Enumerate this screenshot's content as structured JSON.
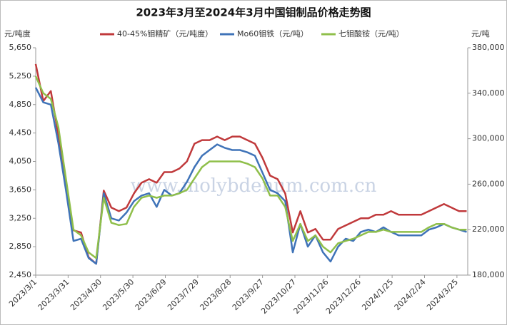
{
  "chart_data": {
    "type": "line",
    "title": "2023年3月至2024年3月中国钼制品价格走势图",
    "ylabel": "元/吨度",
    "y2label": "元/吨",
    "watermark": "www.molybdenum.com.cn",
    "x": [
      "2023/3/1",
      "2023/3/8",
      "2023/3/15",
      "2023/3/22",
      "2023/3/29",
      "2023/4/5",
      "2023/4/12",
      "2023/4/19",
      "2023/4/26",
      "2023/5/3",
      "2023/5/10",
      "2023/5/17",
      "2023/5/24",
      "2023/5/31",
      "2023/6/7",
      "2023/6/14",
      "2023/6/21",
      "2023/6/28",
      "2023/7/5",
      "2023/7/12",
      "2023/7/19",
      "2023/7/26",
      "2023/8/2",
      "2023/8/9",
      "2023/8/16",
      "2023/8/23",
      "2023/8/30",
      "2023/9/6",
      "2023/9/13",
      "2023/9/20",
      "2023/9/27",
      "2023/10/4",
      "2023/10/11",
      "2023/10/18",
      "2023/10/25",
      "2023/11/1",
      "2023/11/8",
      "2023/11/15",
      "2023/11/22",
      "2023/11/29",
      "2023/12/6",
      "2023/12/13",
      "2023/12/20",
      "2023/12/27",
      "2024/1/3",
      "2024/1/10",
      "2024/1/17",
      "2024/1/24",
      "2024/1/31",
      "2024/2/7",
      "2024/2/14",
      "2024/2/21",
      "2024/2/28",
      "2024/3/6",
      "2024/3/13",
      "2024/3/20",
      "2024/3/27",
      "2024/4/3"
    ],
    "xlim": [
      "2023/3/1",
      "2024/4/4"
    ],
    "xticks": [
      "2023/3/1",
      "2023/3/31",
      "2023/4/30",
      "2023/5/30",
      "2023/6/29",
      "2023/7/29",
      "2023/8/28",
      "2023/9/27",
      "2023/10/27",
      "2023/11/26",
      "2023/12/26",
      "2024/1/25",
      "2024/2/24",
      "2024/3/25"
    ],
    "ylim": [
      2450,
      5650
    ],
    "yticks": [
      {
        "value": 2450,
        "label": "2,450"
      },
      {
        "value": 2850,
        "label": "2,850"
      },
      {
        "value": 3250,
        "label": "3,250"
      },
      {
        "value": 3650,
        "label": "3,650"
      },
      {
        "value": 4050,
        "label": "4,050"
      },
      {
        "value": 4450,
        "label": "4,450"
      },
      {
        "value": 4850,
        "label": "4,850"
      },
      {
        "value": 5250,
        "label": "5,250"
      },
      {
        "value": 5650,
        "label": "5,650"
      }
    ],
    "y2lim": [
      180000,
      380000
    ],
    "y2ticks": [
      {
        "value": 180000,
        "label": "180,000"
      },
      {
        "value": 220000,
        "label": "220,000"
      },
      {
        "value": 260000,
        "label": "260,000"
      },
      {
        "value": 300000,
        "label": "300,000"
      },
      {
        "value": 340000,
        "label": "340,000"
      },
      {
        "value": 380000,
        "label": "380,000"
      }
    ],
    "grid": false,
    "series": [
      {
        "name": "40-45%钼精矿（元/吨度）",
        "color": "#c0393b",
        "axis": "y",
        "values": [
          5420,
          4900,
          5040,
          4420,
          3720,
          3080,
          3050,
          2700,
          2610,
          3640,
          3400,
          3350,
          3400,
          3600,
          3750,
          3800,
          3750,
          3900,
          3900,
          3950,
          4050,
          4300,
          4350,
          4350,
          4400,
          4350,
          4400,
          4400,
          4350,
          4300,
          4100,
          3850,
          3800,
          3600,
          3050,
          3350,
          3050,
          3100,
          2950,
          2950,
          3100,
          3150,
          3200,
          3250,
          3250,
          3300,
          3300,
          3350,
          3300,
          3300,
          3300,
          3300,
          3350,
          3400,
          3450,
          3400,
          3350,
          3350
        ]
      },
      {
        "name": "Mo60钼铁（元/吨）",
        "color": "#3f73b8",
        "axis": "y2",
        "values": [
          345000,
          332000,
          330000,
          296000,
          255000,
          210000,
          212000,
          195000,
          190000,
          252000,
          230000,
          228000,
          235000,
          245000,
          250000,
          252000,
          240000,
          255000,
          250000,
          252000,
          262000,
          275000,
          285000,
          290000,
          295000,
          292000,
          290000,
          290000,
          288000,
          285000,
          270000,
          255000,
          252000,
          245000,
          200000,
          225000,
          205000,
          215000,
          200000,
          192000,
          205000,
          212000,
          210000,
          218000,
          220000,
          218000,
          222000,
          218000,
          215000,
          215000,
          215000,
          215000,
          220000,
          222000,
          225000,
          222000,
          220000,
          218000
        ]
      },
      {
        "name": "七钼酸铵（元/吨）",
        "color": "#8fbf4a",
        "axis": "y2",
        "values": [
          355000,
          340000,
          335000,
          310000,
          265000,
          220000,
          215000,
          200000,
          195000,
          248000,
          226000,
          224000,
          225000,
          240000,
          248000,
          250000,
          248000,
          250000,
          250000,
          252000,
          255000,
          265000,
          275000,
          280000,
          280000,
          280000,
          280000,
          280000,
          278000,
          275000,
          265000,
          250000,
          250000,
          240000,
          210000,
          225000,
          210000,
          215000,
          205000,
          200000,
          208000,
          210000,
          212000,
          215000,
          218000,
          218000,
          220000,
          218000,
          218000,
          218000,
          218000,
          218000,
          222000,
          225000,
          225000,
          222000,
          220000,
          220000
        ]
      }
    ]
  }
}
